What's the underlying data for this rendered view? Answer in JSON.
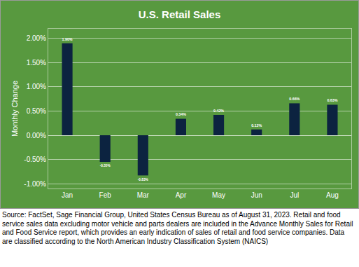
{
  "chart_data": {
    "type": "bar",
    "title": "U.S. Retail Sales",
    "y_label": "Monthly Change",
    "categories": [
      "Jan",
      "Feb",
      "Mar",
      "Apr",
      "May",
      "Jun",
      "Jul",
      "Aug"
    ],
    "values": [
      1.9,
      -0.55,
      -0.83,
      0.34,
      0.42,
      0.12,
      0.66,
      0.63
    ],
    "value_labels": [
      "1.90%",
      "-0.55%",
      "-0.83%",
      "0.34%",
      "0.42%",
      "0.12%",
      "0.66%",
      "0.63%"
    ],
    "color": "#0c2340",
    "ylim": [
      -1.1,
      2.2
    ],
    "yticks": [
      {
        "value": -1,
        "label": "-1.00%"
      },
      {
        "value": -0.5,
        "label": "-0.50%"
      },
      {
        "value": 0,
        "label": "0.00%"
      },
      {
        "value": 0.5,
        "label": "0.50%"
      },
      {
        "value": 1,
        "label": "1.00%"
      },
      {
        "value": 1.5,
        "label": "1.50%"
      },
      {
        "value": 2,
        "label": "2.00%"
      }
    ],
    "grid": true,
    "data_labels": true,
    "annotations": [
      "Source: FactSet, Sage Financial Group, United States Census Bureau as of August 31, 2023. Retail and food service sales data excluding motor vehicle and parts dealers are included in the Advance Monthly Sales for Retail and Food Service report, which provides an early indication of sales of retail and food service companies. Data are classified according to the North American Industry Classification System (NAICS)"
    ]
  }
}
